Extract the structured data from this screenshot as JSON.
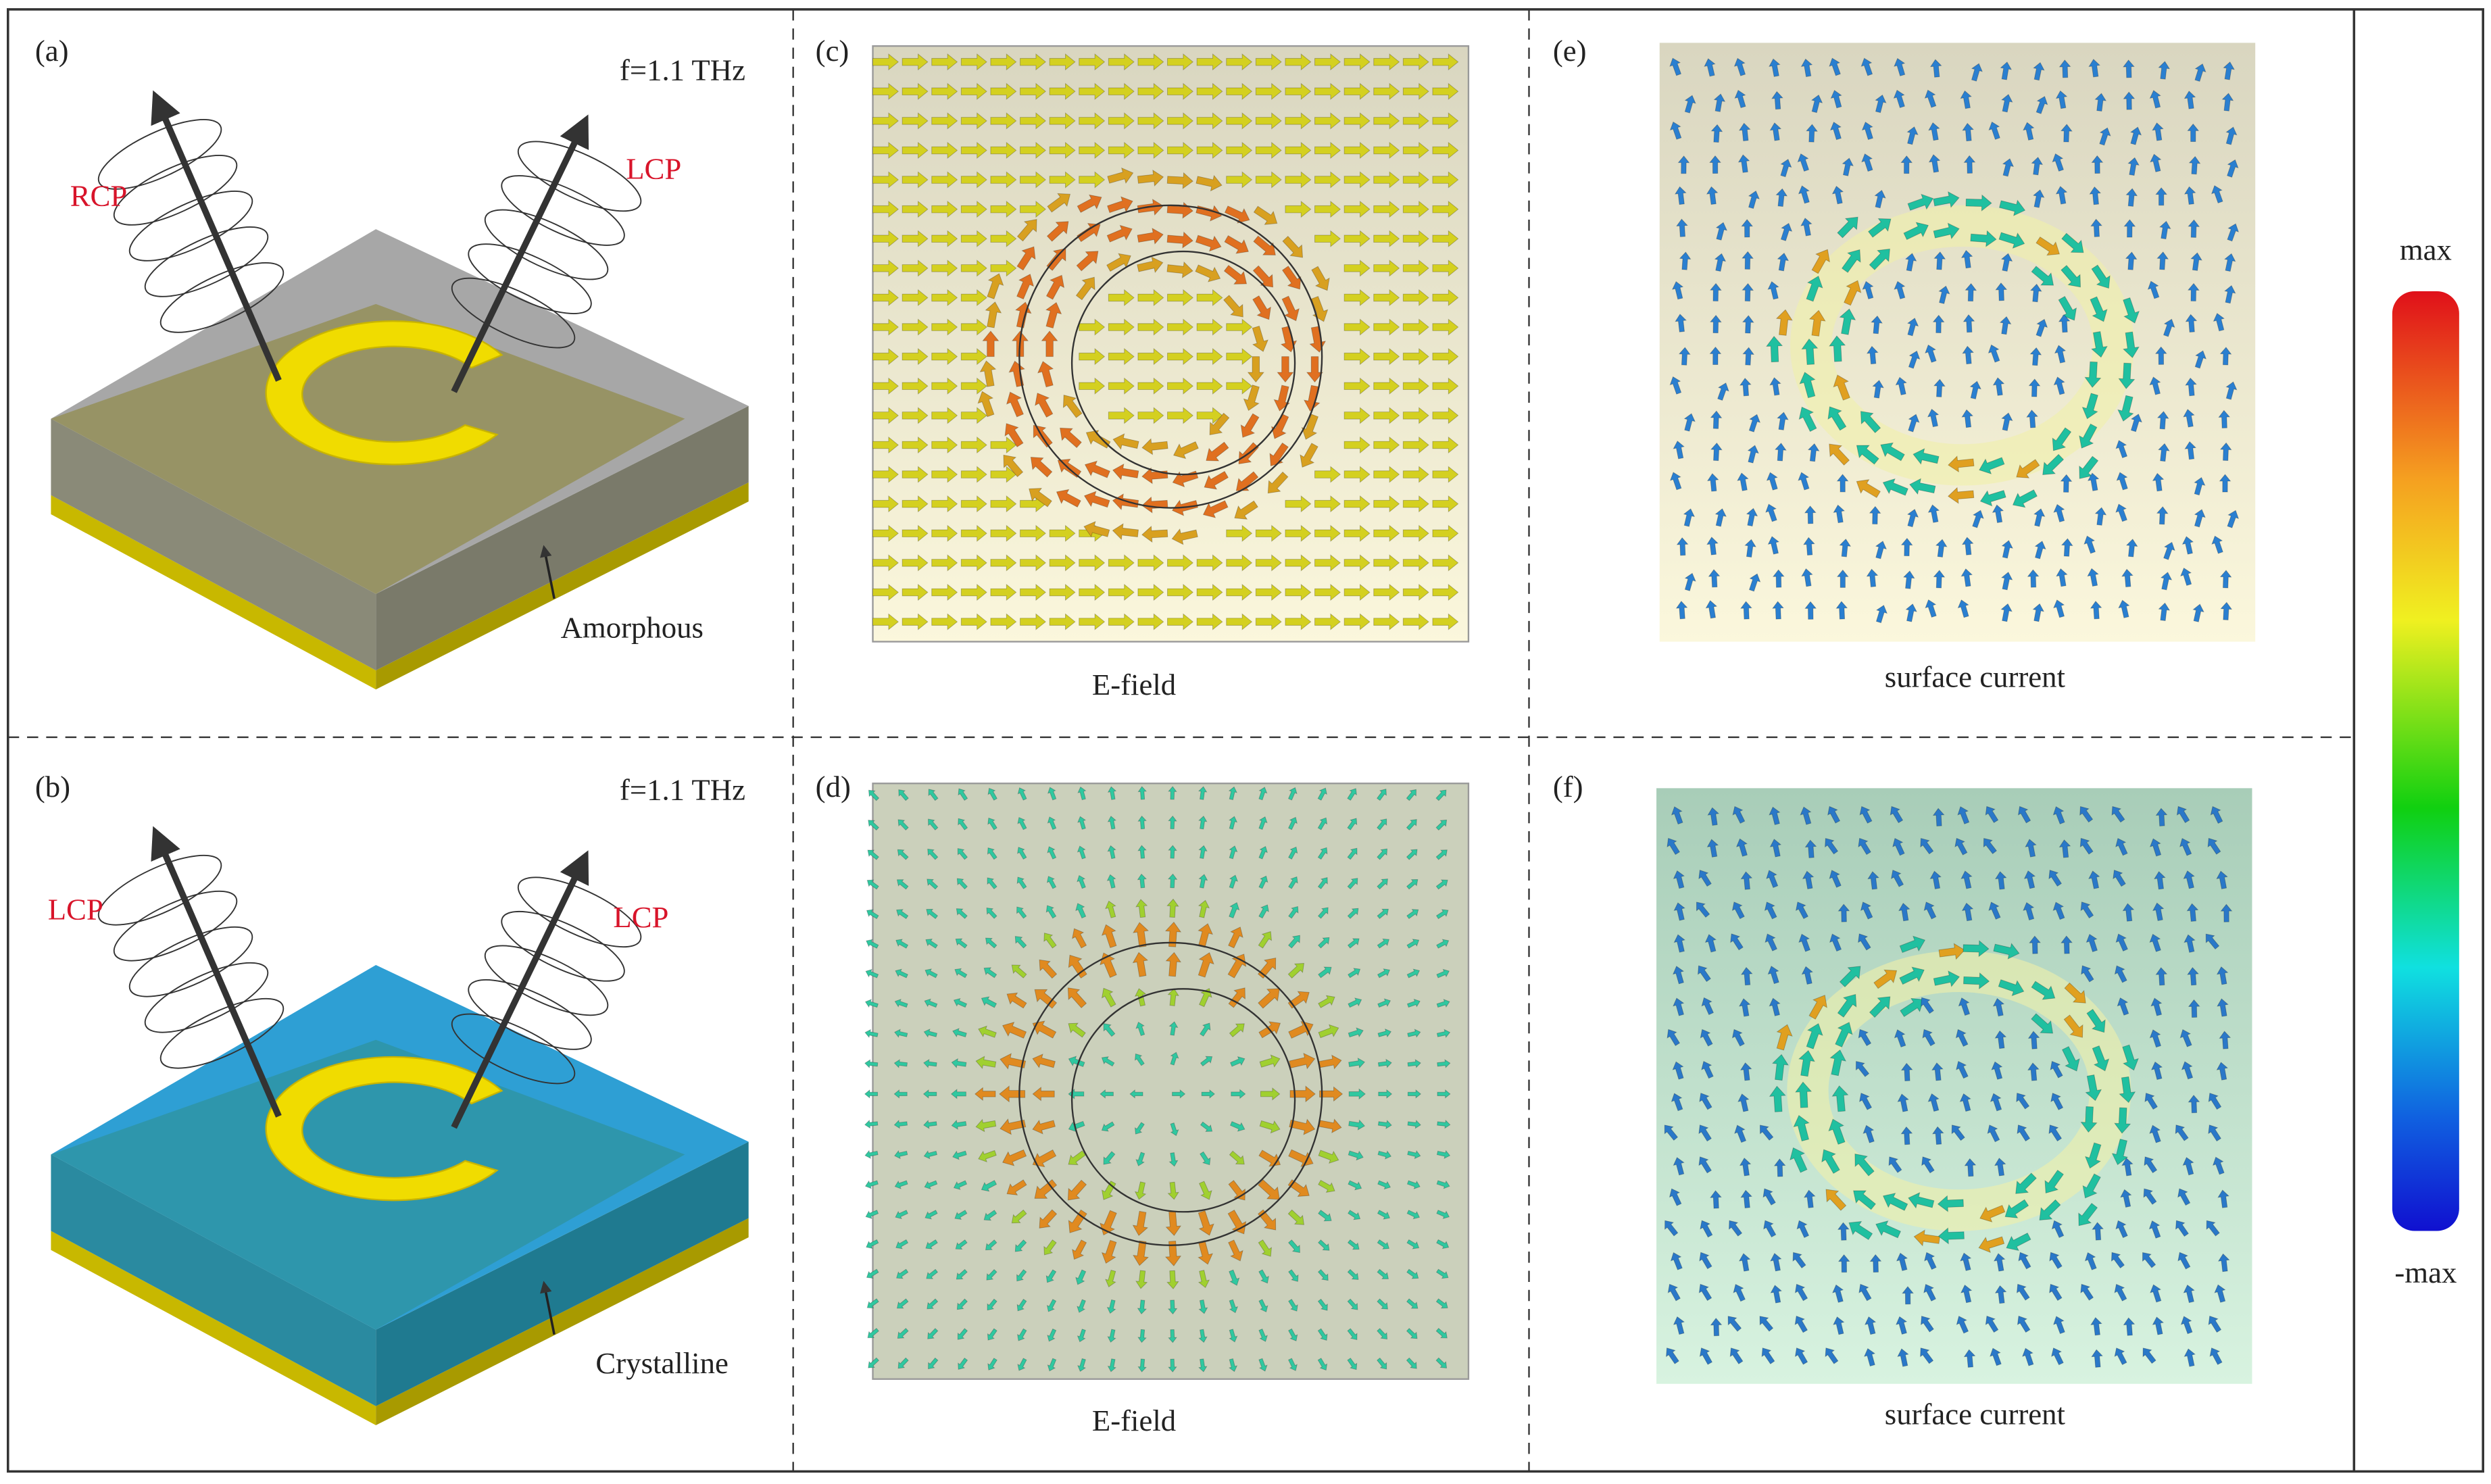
{
  "panels": [
    {
      "label": "(a)",
      "frequency": "f=1.1 THz",
      "left_wave": "RCP",
      "right_wave": "LCP",
      "phase": "Amorphous"
    },
    {
      "label": "(b)",
      "frequency": "f=1.1 THz",
      "left_wave": "LCP",
      "right_wave": "LCP",
      "phase": "Crystalline"
    },
    {
      "label": "(c)",
      "caption": "E-field"
    },
    {
      "label": "(d)",
      "caption": "E-field"
    },
    {
      "label": "(e)",
      "caption": "surface current"
    },
    {
      "label": "(f)",
      "caption": "surface current"
    }
  ],
  "colorbar": {
    "top": "max",
    "bottom": "-max"
  }
}
